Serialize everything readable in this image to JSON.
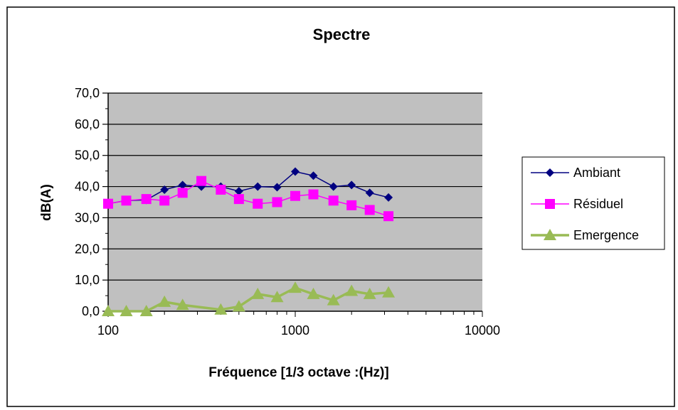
{
  "chart_data": {
    "type": "line",
    "title": "Spectre",
    "xlabel": "Fréquence [1/3 octave :(Hz)]",
    "ylabel": "dB(A)",
    "x_scale": "log",
    "xlim": [
      100,
      10000
    ],
    "ylim": [
      0,
      70
    ],
    "x_ticks": [
      "100",
      "1000",
      "10000"
    ],
    "y_ticks": [
      "0,0",
      "10,0",
      "20,0",
      "30,0",
      "40,0",
      "50,0",
      "60,0",
      "70,0"
    ],
    "grid": "horizontal",
    "legend_position": "right",
    "plot_background": "#c0c0c0",
    "x": [
      100,
      125,
      160,
      200,
      250,
      315,
      400,
      500,
      630,
      800,
      1000,
      1250,
      1600,
      2000,
      2500,
      3150
    ],
    "series": [
      {
        "name": "Ambiant",
        "color": "#000080",
        "marker": "diamond",
        "values": [
          34.5,
          35.5,
          35.7,
          39.0,
          40.5,
          40.0,
          40.0,
          38.5,
          40.0,
          39.8,
          44.8,
          43.5,
          40.0,
          40.5,
          38.0,
          36.5
        ]
      },
      {
        "name": "Résiduel",
        "color": "#ff00ff",
        "marker": "square",
        "values": [
          34.5,
          35.5,
          36.0,
          35.5,
          38.0,
          41.8,
          39.0,
          36.0,
          34.5,
          35.0,
          37.0,
          37.5,
          35.5,
          34.0,
          32.5,
          30.5
        ]
      },
      {
        "name": "Emergence",
        "color": "#99bb55",
        "marker": "triangle",
        "values": [
          0.0,
          0.0,
          0.0,
          3.0,
          2.0,
          null,
          0.5,
          1.5,
          5.5,
          4.5,
          7.5,
          5.5,
          3.5,
          6.5,
          5.5,
          6.0
        ]
      }
    ]
  }
}
